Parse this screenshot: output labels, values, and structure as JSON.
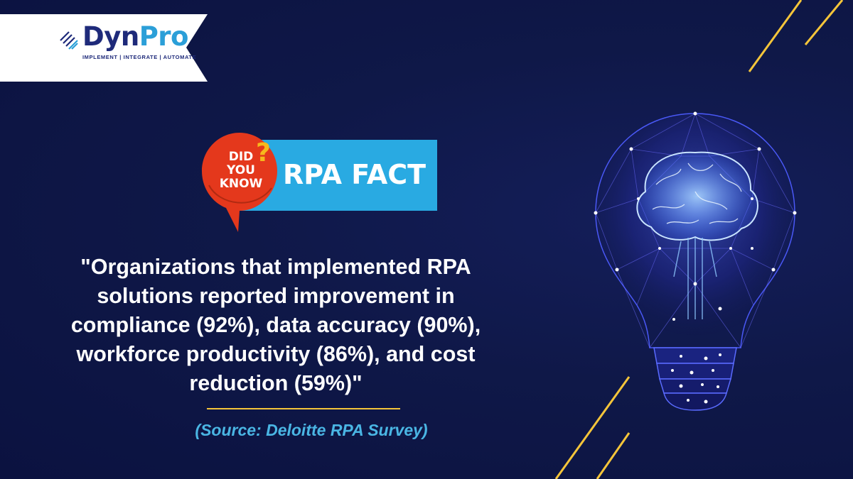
{
  "brand": {
    "name_part1": "Dyn",
    "name_part2": "Pro",
    "tagline": "IMPLEMENT | INTEGRATE | AUTOMATE"
  },
  "badge": {
    "line1": "DID",
    "line2": "YOU",
    "line3": "KNOW",
    "question_mark": "?",
    "label": "RPA FACT"
  },
  "quote": {
    "text": "\"Organizations that implemented RPA solutions reported improvement in compliance (92%), data accuracy (90%), workforce productivity (86%), and cost reduction (59%)\""
  },
  "source": {
    "text": "(Source: Deloitte RPA Survey)"
  },
  "colors": {
    "background": "#0e1645",
    "accent_gold": "#f5c53a",
    "badge_blue": "#29aae2",
    "badge_red": "#e4381c",
    "source_blue": "#4ab6e4",
    "brand_navy": "#1e2a7a",
    "brand_cyan": "#2b9fd8"
  },
  "illustration": {
    "icon": "lightbulb-brain-icon"
  }
}
